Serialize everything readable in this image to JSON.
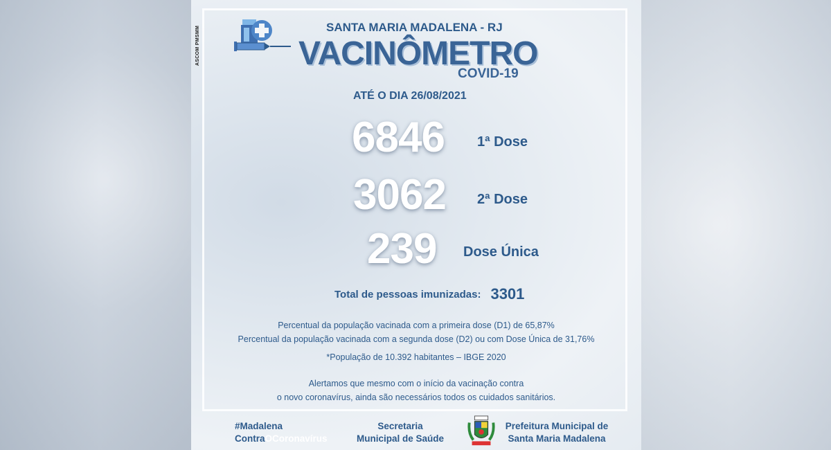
{
  "credit": "ASCOM PMSMM",
  "header": {
    "city": "SANTA MARIA MADALENA - RJ",
    "title": "VACINÔMETRO",
    "subtitle": "COVID-19",
    "date": "ATÉ O DIA 26/08/2021"
  },
  "doses": [
    {
      "value": "6846",
      "label": "1ª Dose"
    },
    {
      "value": "3062",
      "label": "2ª Dose"
    },
    {
      "value": "239",
      "label": "Dose Única"
    }
  ],
  "total": {
    "label": "Total de pessoas imunizadas:",
    "value": "3301"
  },
  "notes": {
    "d1": "Percentual da população vacinada com a primeira dose (D1) de 65,87%",
    "d2": "Percentual da população vacinada com a segunda dose (D2) ou com Dose Única de 31,76%",
    "population": "*População de 10.392 habitantes – IBGE 2020",
    "alert1": "Alertamos que mesmo com o início da vacinação contra",
    "alert2": "o novo coronavírus, ainda são necessários todos os cuidados sanitários."
  },
  "footer": {
    "hashtag1": "#Madalena",
    "hashtag2a": "Contra",
    "hashtag2b": "OCoronavírus",
    "secretaria1": "Secretaria",
    "secretaria2": "Municipal de Saúde",
    "prefeitura1": "Prefeitura Municipal de",
    "prefeitura2": "Santa Maria Madalena"
  },
  "colors": {
    "text": "#2d5a8b",
    "numbers": "#ffffff",
    "hashtag_highlight": "#ffffff"
  }
}
